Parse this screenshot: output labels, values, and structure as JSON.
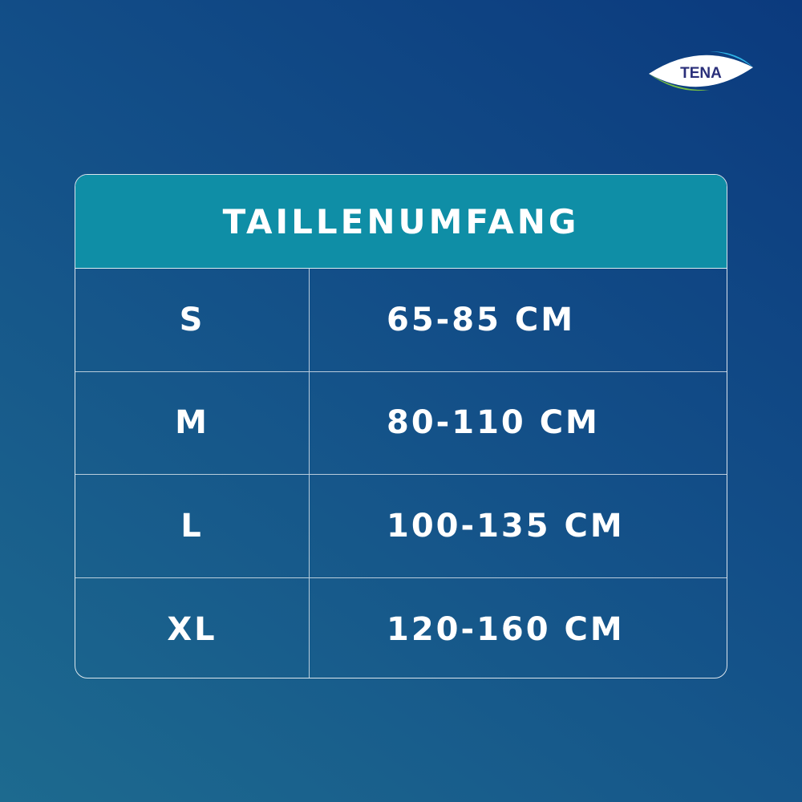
{
  "logo": {
    "text": "TENA"
  },
  "table": {
    "header": "TAILLENUMFANG",
    "rows": [
      {
        "size": "S",
        "range": "65-85 CM"
      },
      {
        "size": "M",
        "range": "80-110 CM"
      },
      {
        "size": "L",
        "range": "100-135 CM"
      },
      {
        "size": "XL",
        "range": "120-160 CM"
      }
    ]
  },
  "colors": {
    "header": "#0f8ea6",
    "background_dark": "#0b3a7e",
    "background_light": "#1d6a8f",
    "logo_green": "#7ac143",
    "logo_blue": "#2fb6e8",
    "logo_text": "#2a2f7a"
  }
}
